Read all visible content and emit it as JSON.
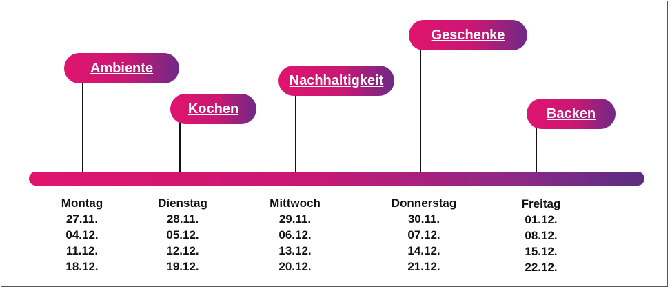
{
  "topics": [
    {
      "label": "Ambiente"
    },
    {
      "label": "Kochen"
    },
    {
      "label": "Nachhaltigkeit"
    },
    {
      "label": "Geschenke"
    },
    {
      "label": "Backen"
    }
  ],
  "days": [
    {
      "name": "Montag",
      "dates": [
        "27.11.",
        "04.12.",
        "11.12.",
        "18.12."
      ]
    },
    {
      "name": "Dienstag",
      "dates": [
        "28.11.",
        "05.12.",
        "12.12.",
        "19.12."
      ]
    },
    {
      "name": "Mittwoch",
      "dates": [
        "29.11.",
        "06.12.",
        "13.12.",
        "20.12."
      ]
    },
    {
      "name": "Donnerstag",
      "dates": [
        "30.11.",
        "07.12.",
        "14.12.",
        "21.12."
      ]
    },
    {
      "name": "Freitag",
      "dates": [
        "01.12.",
        "08.12.",
        "15.12.",
        "22.12."
      ]
    }
  ],
  "colors": {
    "accent_start": "#e0146f",
    "accent_end": "#5a2d82"
  }
}
